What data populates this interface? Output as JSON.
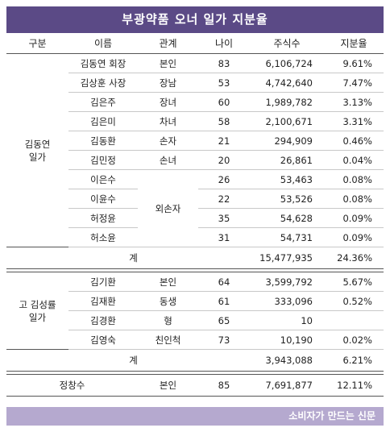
{
  "title": "부광약품 오너 일가 지분율",
  "headers": [
    "구분",
    "이름",
    "관계",
    "나이",
    "주식수",
    "지분율"
  ],
  "group1": {
    "label": "김동연\n일가",
    "rows": [
      {
        "name": "김동연 회장",
        "relation": "본인",
        "age": "83",
        "shares": "6,106,724",
        "ratio": "9.61%"
      },
      {
        "name": "김상훈 사장",
        "relation": "장남",
        "age": "53",
        "shares": "4,742,640",
        "ratio": "7.47%"
      },
      {
        "name": "김은주",
        "relation": "장녀",
        "age": "60",
        "shares": "1,989,782",
        "ratio": "3.13%"
      },
      {
        "name": "김은미",
        "relation": "차녀",
        "age": "58",
        "shares": "2,100,671",
        "ratio": "3.31%"
      },
      {
        "name": "김동환",
        "relation": "손자",
        "age": "21",
        "shares": "294,909",
        "ratio": "0.46%"
      },
      {
        "name": "김민정",
        "relation": "손녀",
        "age": "20",
        "shares": "26,861",
        "ratio": "0.04%"
      },
      {
        "name": "이은수",
        "relation": "",
        "age": "26",
        "shares": "53,463",
        "ratio": "0.08%"
      },
      {
        "name": "이윤수",
        "relation": "",
        "age": "22",
        "shares": "53,526",
        "ratio": "0.08%"
      },
      {
        "name": "허정윤",
        "relation": "",
        "age": "35",
        "shares": "54,628",
        "ratio": "0.09%"
      },
      {
        "name": "허소윤",
        "relation": "",
        "age": "31",
        "shares": "54,731",
        "ratio": "0.09%"
      }
    ],
    "merged_relation": "외손자",
    "total_label": "계",
    "total_shares": "15,477,935",
    "total_ratio": "24.36%"
  },
  "group2": {
    "label": "고 김성률\n일가",
    "rows": [
      {
        "name": "김기환",
        "relation": "본인",
        "age": "64",
        "shares": "3,599,792",
        "ratio": "5.67%"
      },
      {
        "name": "김재환",
        "relation": "동생",
        "age": "61",
        "shares": "333,096",
        "ratio": "0.52%"
      },
      {
        "name": "김경환",
        "relation": "형",
        "age": "65",
        "shares": "10",
        "ratio": ""
      },
      {
        "name": "김영숙",
        "relation": "친인척",
        "age": "73",
        "shares": "10,190",
        "ratio": "0.02%"
      }
    ],
    "total_label": "계",
    "total_shares": "3,943,088",
    "total_ratio": "6.21%"
  },
  "other": {
    "name": "정창수",
    "relation": "본인",
    "age": "85",
    "shares": "7,691,877",
    "ratio": "12.11%"
  },
  "footer": "소비자가 만드는 신문"
}
